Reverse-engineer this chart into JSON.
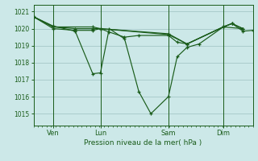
{
  "background_color": "#cce8e8",
  "grid_color": "#aacccc",
  "line_color": "#1a5c1a",
  "title": "Pression niveau de la mer( hPa )",
  "ylim": [
    1014.3,
    1021.4
  ],
  "yticks": [
    1015,
    1016,
    1017,
    1018,
    1019,
    1020,
    1021
  ],
  "xlim": [
    0,
    1.0
  ],
  "day_labels": [
    "Ven",
    "Lun",
    "Sam",
    "Dim"
  ],
  "day_positions": [
    0.09,
    0.305,
    0.615,
    0.865
  ],
  "series": [
    {
      "x": [
        0.0,
        0.09,
        0.19,
        0.27,
        0.305,
        0.345,
        0.415,
        0.48,
        0.535,
        0.615,
        0.655,
        0.7,
        0.755,
        0.865,
        0.905,
        0.955,
        1.0
      ],
      "y": [
        1020.7,
        1020.15,
        1019.85,
        1017.35,
        1017.4,
        1020.0,
        1019.4,
        1016.3,
        1015.0,
        1016.0,
        1018.35,
        1018.9,
        1019.1,
        1020.1,
        1020.3,
        1019.85,
        1019.9
      ]
    },
    {
      "x": [
        0.0,
        0.09,
        0.19,
        0.27,
        0.305,
        0.345,
        0.415,
        0.48,
        0.615,
        0.655,
        0.7,
        0.865,
        0.905,
        0.955
      ],
      "y": [
        1020.7,
        1020.0,
        1019.9,
        1019.9,
        1020.0,
        1019.8,
        1019.5,
        1019.6,
        1019.6,
        1019.2,
        1019.1,
        1020.1,
        1020.3,
        1020.0
      ]
    },
    {
      "x": [
        0.0,
        0.09,
        0.19,
        0.27,
        0.305,
        0.615,
        0.7,
        0.865,
        0.905,
        0.955
      ],
      "y": [
        1020.7,
        1020.1,
        1020.0,
        1020.0,
        1020.0,
        1019.7,
        1019.1,
        1020.1,
        1020.3,
        1020.0
      ]
    },
    {
      "x": [
        0.0,
        0.09,
        0.27,
        0.305,
        0.615,
        0.7,
        0.865,
        0.955
      ],
      "y": [
        1020.7,
        1020.1,
        1020.1,
        1020.0,
        1019.65,
        1019.1,
        1020.1,
        1020.0
      ]
    }
  ]
}
